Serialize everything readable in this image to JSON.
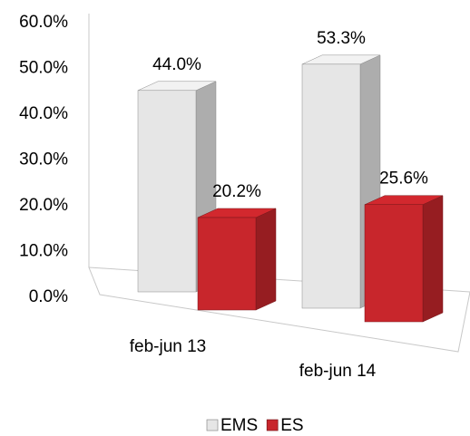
{
  "chart_data": {
    "type": "bar3d",
    "categories": [
      "feb-jun 13",
      "feb-jun 14"
    ],
    "series": [
      {
        "name": "EMS",
        "color": "#e6e6e6",
        "values": [
          44.0,
          53.3
        ],
        "value_labels": [
          "44.0%",
          "53.3%"
        ]
      },
      {
        "name": "ES",
        "color": "#c8262c",
        "values": [
          20.2,
          25.6
        ],
        "value_labels": [
          "20.2%",
          "25.6%"
        ]
      }
    ],
    "ylim": [
      0,
      60
    ],
    "yticks": [
      {
        "value": 0,
        "label": "0.0%"
      },
      {
        "value": 10,
        "label": "10.0%"
      },
      {
        "value": 20,
        "label": "20.0%"
      },
      {
        "value": 30,
        "label": "30.0%"
      },
      {
        "value": 40,
        "label": "40.0%"
      },
      {
        "value": 50,
        "label": "50.0%"
      },
      {
        "value": 60,
        "label": "60.0%"
      }
    ],
    "grid": false,
    "legend": "bottom"
  }
}
